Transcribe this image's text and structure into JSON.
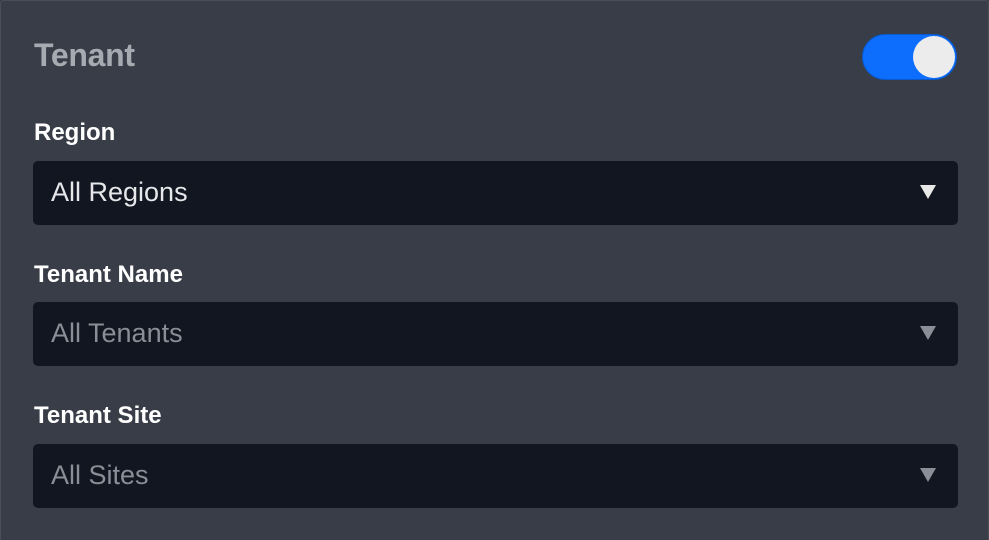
{
  "panel": {
    "title": "Tenant",
    "toggle": {
      "on": true,
      "accent": "#0d6efd"
    }
  },
  "fields": [
    {
      "label": "Region",
      "value": "All Regions",
      "enabled": true
    },
    {
      "label": "Tenant Name",
      "value": "All Tenants",
      "enabled": false
    },
    {
      "label": "Tenant Site",
      "value": "All Sites",
      "enabled": false
    }
  ]
}
